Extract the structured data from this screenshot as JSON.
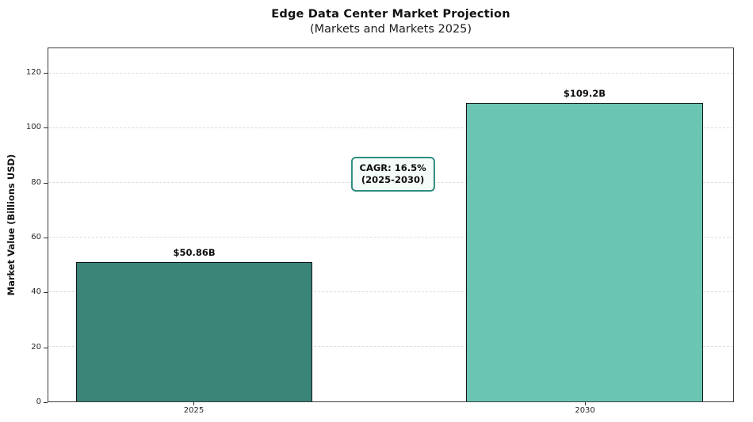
{
  "chart_data": {
    "type": "bar",
    "title": "Edge Data Center Market Projection",
    "subtitle": "(Markets and Markets 2025)",
    "xlabel": "",
    "ylabel": "Market Value (Billions USD)",
    "categories": [
      "2025",
      "2030"
    ],
    "values": [
      50.86,
      109.2
    ],
    "bar_labels": [
      "$50.86B",
      "$109.2B"
    ],
    "bar_colors": [
      "#3a8478",
      "#6ac5b2"
    ],
    "bar_edge_color": "#141414",
    "yticks": [
      0,
      20,
      40,
      60,
      80,
      100,
      120
    ],
    "ylim": [
      0,
      129.2
    ],
    "grid": "horizontal dashed",
    "legend": "none",
    "annotation": {
      "line1": "CAGR: 16.5%",
      "line2": "(2025-2030)",
      "border_color": "#2f8c80",
      "background_color": "#f4fbf8"
    }
  }
}
